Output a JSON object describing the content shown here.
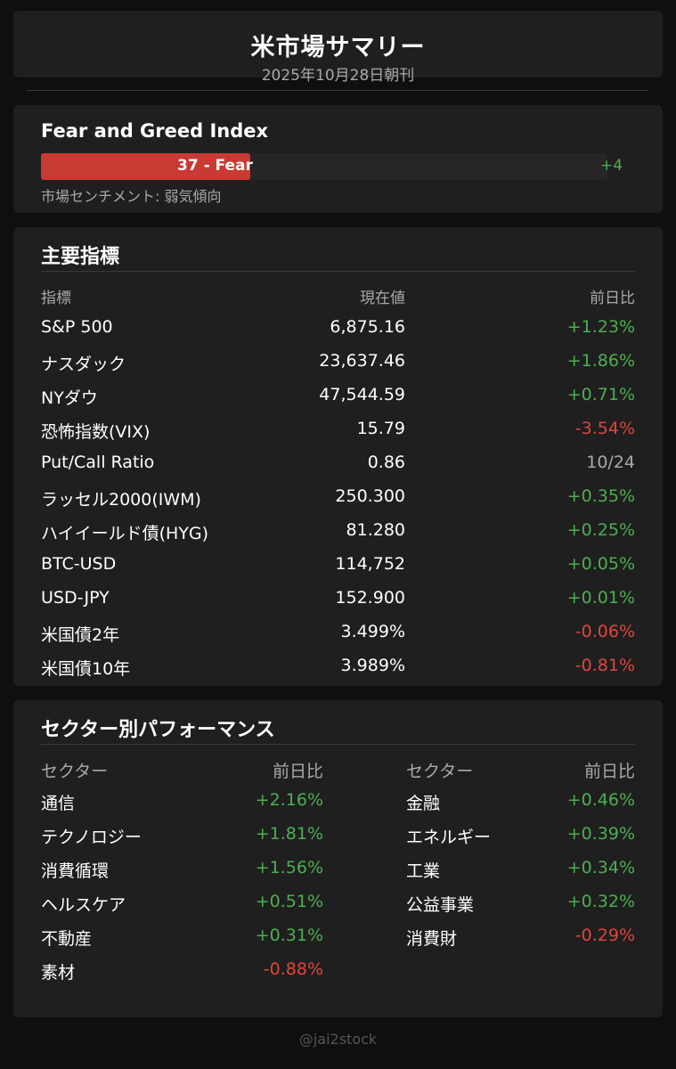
{
  "header": {
    "title": "米市場サマリー",
    "subtitle": "2025年10月28日朝刊"
  },
  "fear_greed": {
    "title": "Fear and Greed Index",
    "value": 37,
    "label": "37 - Fear",
    "change": "+4",
    "sentiment": "市場センチメント: 弱気傾向",
    "fill_color": "#c93a33"
  },
  "indices": {
    "title": "主要指標",
    "headers": [
      "指標",
      "現在値",
      "前日比"
    ],
    "rows": [
      {
        "name": "S&P 500",
        "value": "6,875.16",
        "change": "+1.23%",
        "tone": "pos"
      },
      {
        "name": "ナスダック",
        "value": "23,637.46",
        "change": "+1.86%",
        "tone": "pos"
      },
      {
        "name": "NYダウ",
        "value": "47,544.59",
        "change": "+0.71%",
        "tone": "pos"
      },
      {
        "name": "恐怖指数(VIX)",
        "value": "15.79",
        "change": "-3.54%",
        "tone": "neg"
      },
      {
        "name": "Put/Call Ratio",
        "value": "0.86",
        "change": "10/24",
        "tone": "neu"
      },
      {
        "name": "ラッセル2000(IWM)",
        "value": "250.300",
        "change": "+0.35%",
        "tone": "pos"
      },
      {
        "name": "ハイイールド債(HYG)",
        "value": "81.280",
        "change": "+0.25%",
        "tone": "pos"
      },
      {
        "name": "BTC-USD",
        "value": "114,752",
        "change": "+0.05%",
        "tone": "pos"
      },
      {
        "name": "USD-JPY",
        "value": "152.900",
        "change": "+0.01%",
        "tone": "pos"
      },
      {
        "name": "米国債2年",
        "value": "3.499%",
        "change": "-0.06%",
        "tone": "neg"
      },
      {
        "name": "米国債10年",
        "value": "3.989%",
        "change": "-0.81%",
        "tone": "neg"
      }
    ]
  },
  "sectors": {
    "title": "セクター別パフォーマンス",
    "left": {
      "headers": [
        "セクター",
        "前日比"
      ],
      "rows": [
        {
          "name": "通信",
          "change": "+2.16%",
          "tone": "pos"
        },
        {
          "name": "テクノロジー",
          "change": "+1.81%",
          "tone": "pos"
        },
        {
          "name": "消費循環",
          "change": "+1.56%",
          "tone": "pos"
        },
        {
          "name": "ヘルスケア",
          "change": "+0.51%",
          "tone": "pos"
        },
        {
          "name": "不動産",
          "change": "+0.31%",
          "tone": "pos"
        },
        {
          "name": "素材",
          "change": "-0.88%",
          "tone": "neg"
        }
      ]
    },
    "right": {
      "headers": [
        "セクター",
        "前日比"
      ],
      "rows": [
        {
          "name": "金融",
          "change": "+0.46%",
          "tone": "pos"
        },
        {
          "name": "エネルギー",
          "change": "+0.39%",
          "tone": "pos"
        },
        {
          "name": "工業",
          "change": "+0.34%",
          "tone": "pos"
        },
        {
          "name": "公益事業",
          "change": "+0.32%",
          "tone": "pos"
        },
        {
          "name": "消費財",
          "change": "-0.29%",
          "tone": "neg"
        }
      ]
    }
  },
  "watermark": "@jai2stock",
  "colors": {
    "positive": "#4caf50",
    "negative": "#e0453c",
    "neutral": "#a9a9a9"
  }
}
